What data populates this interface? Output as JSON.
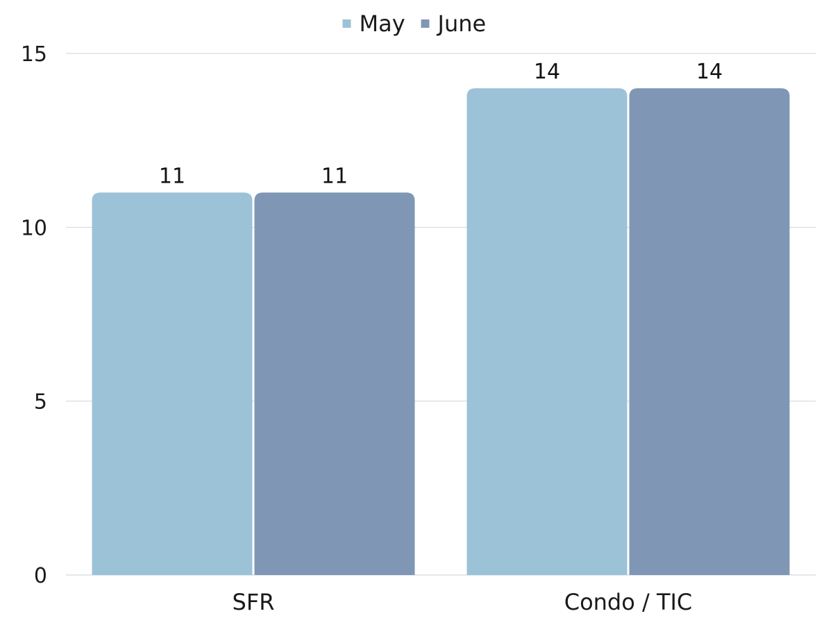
{
  "chart_data": {
    "type": "bar",
    "categories": [
      "SFR",
      "Condo / TIC"
    ],
    "series": [
      {
        "name": "May",
        "values": [
          11,
          14
        ],
        "color": "#9CC2D8"
      },
      {
        "name": "June",
        "values": [
          11,
          14
        ],
        "color": "#7F97B5"
      }
    ],
    "ylim": [
      0,
      15
    ],
    "yticks": [
      0,
      5,
      10,
      15
    ],
    "grid": true,
    "legend_position": "top-center",
    "data_labels": true,
    "colors": {
      "grid": "#D0D3D8",
      "axis": "#C8CCD2",
      "text": "#1a1a1a"
    }
  }
}
